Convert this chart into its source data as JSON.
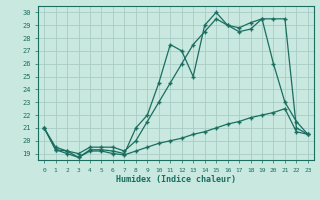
{
  "background_color": "#c8e8e0",
  "grid_color": "#a8ccc8",
  "line_color": "#1a6e60",
  "xlabel": "Humidex (Indice chaleur)",
  "xlim": [
    -0.5,
    23.5
  ],
  "ylim": [
    18.5,
    30.5
  ],
  "yticks": [
    19,
    20,
    21,
    22,
    23,
    24,
    25,
    26,
    27,
    28,
    29,
    30
  ],
  "xticks": [
    0,
    1,
    2,
    3,
    4,
    5,
    6,
    7,
    8,
    9,
    10,
    11,
    12,
    13,
    14,
    15,
    16,
    17,
    18,
    19,
    20,
    21,
    22,
    23
  ],
  "series1_x": [
    0,
    1,
    2,
    3,
    4,
    5,
    6,
    7,
    8,
    9,
    10,
    11,
    12,
    13,
    14,
    15,
    16,
    17,
    18,
    19,
    20,
    21,
    22,
    23
  ],
  "series1_y": [
    21.0,
    19.3,
    19.2,
    18.7,
    19.3,
    19.3,
    19.2,
    19.0,
    21.0,
    22.0,
    24.5,
    27.5,
    27.0,
    25.0,
    29.0,
    30.0,
    29.0,
    28.5,
    28.7,
    29.5,
    26.0,
    23.0,
    21.5,
    20.5
  ],
  "series2_x": [
    0,
    1,
    2,
    3,
    4,
    5,
    6,
    7,
    8,
    9,
    10,
    11,
    12,
    13,
    14,
    15,
    16,
    17,
    18,
    19,
    20,
    21,
    22,
    23
  ],
  "series2_y": [
    21.0,
    19.5,
    19.2,
    19.0,
    19.5,
    19.5,
    19.5,
    19.2,
    20.0,
    21.5,
    23.0,
    24.5,
    26.0,
    27.5,
    28.5,
    29.5,
    29.0,
    28.8,
    29.2,
    29.5,
    29.5,
    29.5,
    21.0,
    20.5
  ],
  "series3_x": [
    0,
    1,
    2,
    3,
    4,
    5,
    6,
    7,
    8,
    9,
    10,
    11,
    12,
    13,
    14,
    15,
    16,
    17,
    18,
    19,
    20,
    21,
    22,
    23
  ],
  "series3_y": [
    21.0,
    19.3,
    19.0,
    18.7,
    19.2,
    19.2,
    19.0,
    18.9,
    19.2,
    19.5,
    19.8,
    20.0,
    20.2,
    20.5,
    20.7,
    21.0,
    21.3,
    21.5,
    21.8,
    22.0,
    22.2,
    22.5,
    20.7,
    20.5
  ]
}
